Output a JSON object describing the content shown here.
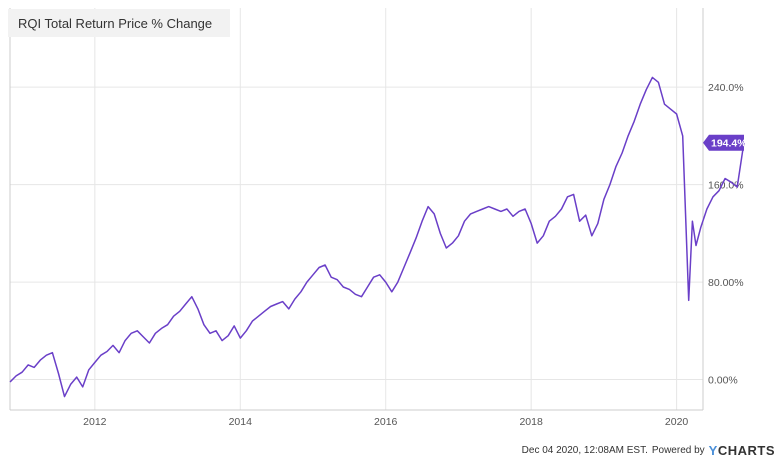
{
  "chart_data": {
    "type": "line",
    "title": "RQI Total Return Price % Change",
    "x_ticks": [
      "2012",
      "2014",
      "2016",
      "2018",
      "2020"
    ],
    "y_ticks": [
      "0.00%",
      "80.00%",
      "160.0%",
      "240.0%"
    ],
    "ylim": [
      -25,
      305
    ],
    "xlim": [
      "2010-11-01",
      "2020-12-04"
    ],
    "grid": true,
    "last_value_label": "194.4%",
    "colors": {
      "series": "#6a3fc8",
      "grid": "#e6e6e6",
      "axis_text": "#555555"
    },
    "series": [
      {
        "x": [
          "2010-11",
          "2010-12",
          "2011-01",
          "2011-02",
          "2011-03",
          "2011-04",
          "2011-05",
          "2011-06",
          "2011-07",
          "2011-08",
          "2011-09",
          "2011-10",
          "2011-11",
          "2011-12",
          "2012-01",
          "2012-02",
          "2012-03",
          "2012-04",
          "2012-05",
          "2012-06",
          "2012-07",
          "2012-08",
          "2012-09",
          "2012-10",
          "2012-11",
          "2012-12",
          "2013-01",
          "2013-02",
          "2013-03",
          "2013-04",
          "2013-05",
          "2013-06",
          "2013-07",
          "2013-08",
          "2013-09",
          "2013-10",
          "2013-11",
          "2013-12",
          "2014-01",
          "2014-02",
          "2014-03",
          "2014-04",
          "2014-05",
          "2014-06",
          "2014-07",
          "2014-08",
          "2014-09",
          "2014-10",
          "2014-11",
          "2014-12",
          "2015-01",
          "2015-02",
          "2015-03",
          "2015-04",
          "2015-05",
          "2015-06",
          "2015-07",
          "2015-08",
          "2015-09",
          "2015-10",
          "2015-11",
          "2015-12",
          "2016-01",
          "2016-02",
          "2016-03",
          "2016-04",
          "2016-05",
          "2016-06",
          "2016-07",
          "2016-08",
          "2016-09",
          "2016-10",
          "2016-11",
          "2016-12",
          "2017-01",
          "2017-02",
          "2017-03",
          "2017-04",
          "2017-05",
          "2017-06",
          "2017-07",
          "2017-08",
          "2017-09",
          "2017-10",
          "2017-11",
          "2017-12",
          "2018-01",
          "2018-02",
          "2018-03",
          "2018-04",
          "2018-05",
          "2018-06",
          "2018-07",
          "2018-08",
          "2018-09",
          "2018-10",
          "2018-11",
          "2018-12",
          "2019-01",
          "2019-02",
          "2019-03",
          "2019-04",
          "2019-05",
          "2019-06",
          "2019-07",
          "2019-08",
          "2019-09",
          "2019-10",
          "2019-11",
          "2019-12",
          "2020-01",
          "2020-02",
          "2020-03a",
          "2020-03b",
          "2020-04",
          "2020-05",
          "2020-06",
          "2020-07",
          "2020-08",
          "2020-09",
          "2020-10",
          "2020-11",
          "2020-12"
        ],
        "t": [
          0,
          1,
          2,
          3,
          4,
          5,
          6,
          7,
          8,
          9,
          10,
          11,
          12,
          13,
          14,
          15,
          16,
          17,
          18,
          19,
          20,
          21,
          22,
          23,
          24,
          25,
          26,
          27,
          28,
          29,
          30,
          31,
          32,
          33,
          34,
          35,
          36,
          37,
          38,
          39,
          40,
          41,
          42,
          43,
          44,
          45,
          46,
          47,
          48,
          49,
          50,
          51,
          52,
          53,
          54,
          55,
          56,
          57,
          58,
          59,
          60,
          61,
          62,
          63,
          64,
          65,
          66,
          67,
          68,
          69,
          70,
          71,
          72,
          73,
          74,
          75,
          76,
          77,
          78,
          79,
          80,
          81,
          82,
          83,
          84,
          85,
          86,
          87,
          88,
          89,
          90,
          91,
          92,
          93,
          94,
          95,
          96,
          97,
          98,
          99,
          100,
          101,
          102,
          103,
          104,
          105,
          106,
          107,
          108,
          109,
          110,
          111,
          112,
          112.6,
          113.2,
          114,
          115,
          116,
          117,
          118,
          119,
          120,
          121.1
        ],
        "values": [
          -2,
          3,
          6,
          12,
          10,
          16,
          20,
          22,
          5,
          -14,
          -4,
          2,
          -6,
          8,
          14,
          20,
          23,
          28,
          22,
          32,
          38,
          40,
          35,
          30,
          38,
          42,
          45,
          52,
          56,
          62,
          68,
          58,
          45,
          38,
          40,
          32,
          36,
          44,
          34,
          40,
          48,
          52,
          56,
          60,
          62,
          64,
          58,
          66,
          72,
          80,
          86,
          92,
          94,
          84,
          82,
          76,
          74,
          70,
          68,
          76,
          84,
          86,
          80,
          72,
          80,
          92,
          104,
          116,
          130,
          142,
          136,
          120,
          108,
          112,
          118,
          130,
          136,
          138,
          140,
          142,
          140,
          138,
          140,
          134,
          138,
          140,
          128,
          112,
          118,
          130,
          134,
          140,
          150,
          152,
          130,
          135,
          118,
          128,
          148,
          160,
          175,
          186,
          200,
          212,
          226,
          238,
          248,
          244,
          226,
          222,
          218,
          200,
          65,
          130,
          110,
          125,
          140,
          150,
          155,
          165,
          162,
          158,
          194.4
        ]
      }
    ]
  },
  "footer": {
    "timestamp": "Dec 04 2020, 12:08AM EST.",
    "powered_by": "Powered by",
    "brand_y": "Y",
    "brand_rest": "CHARTS"
  }
}
